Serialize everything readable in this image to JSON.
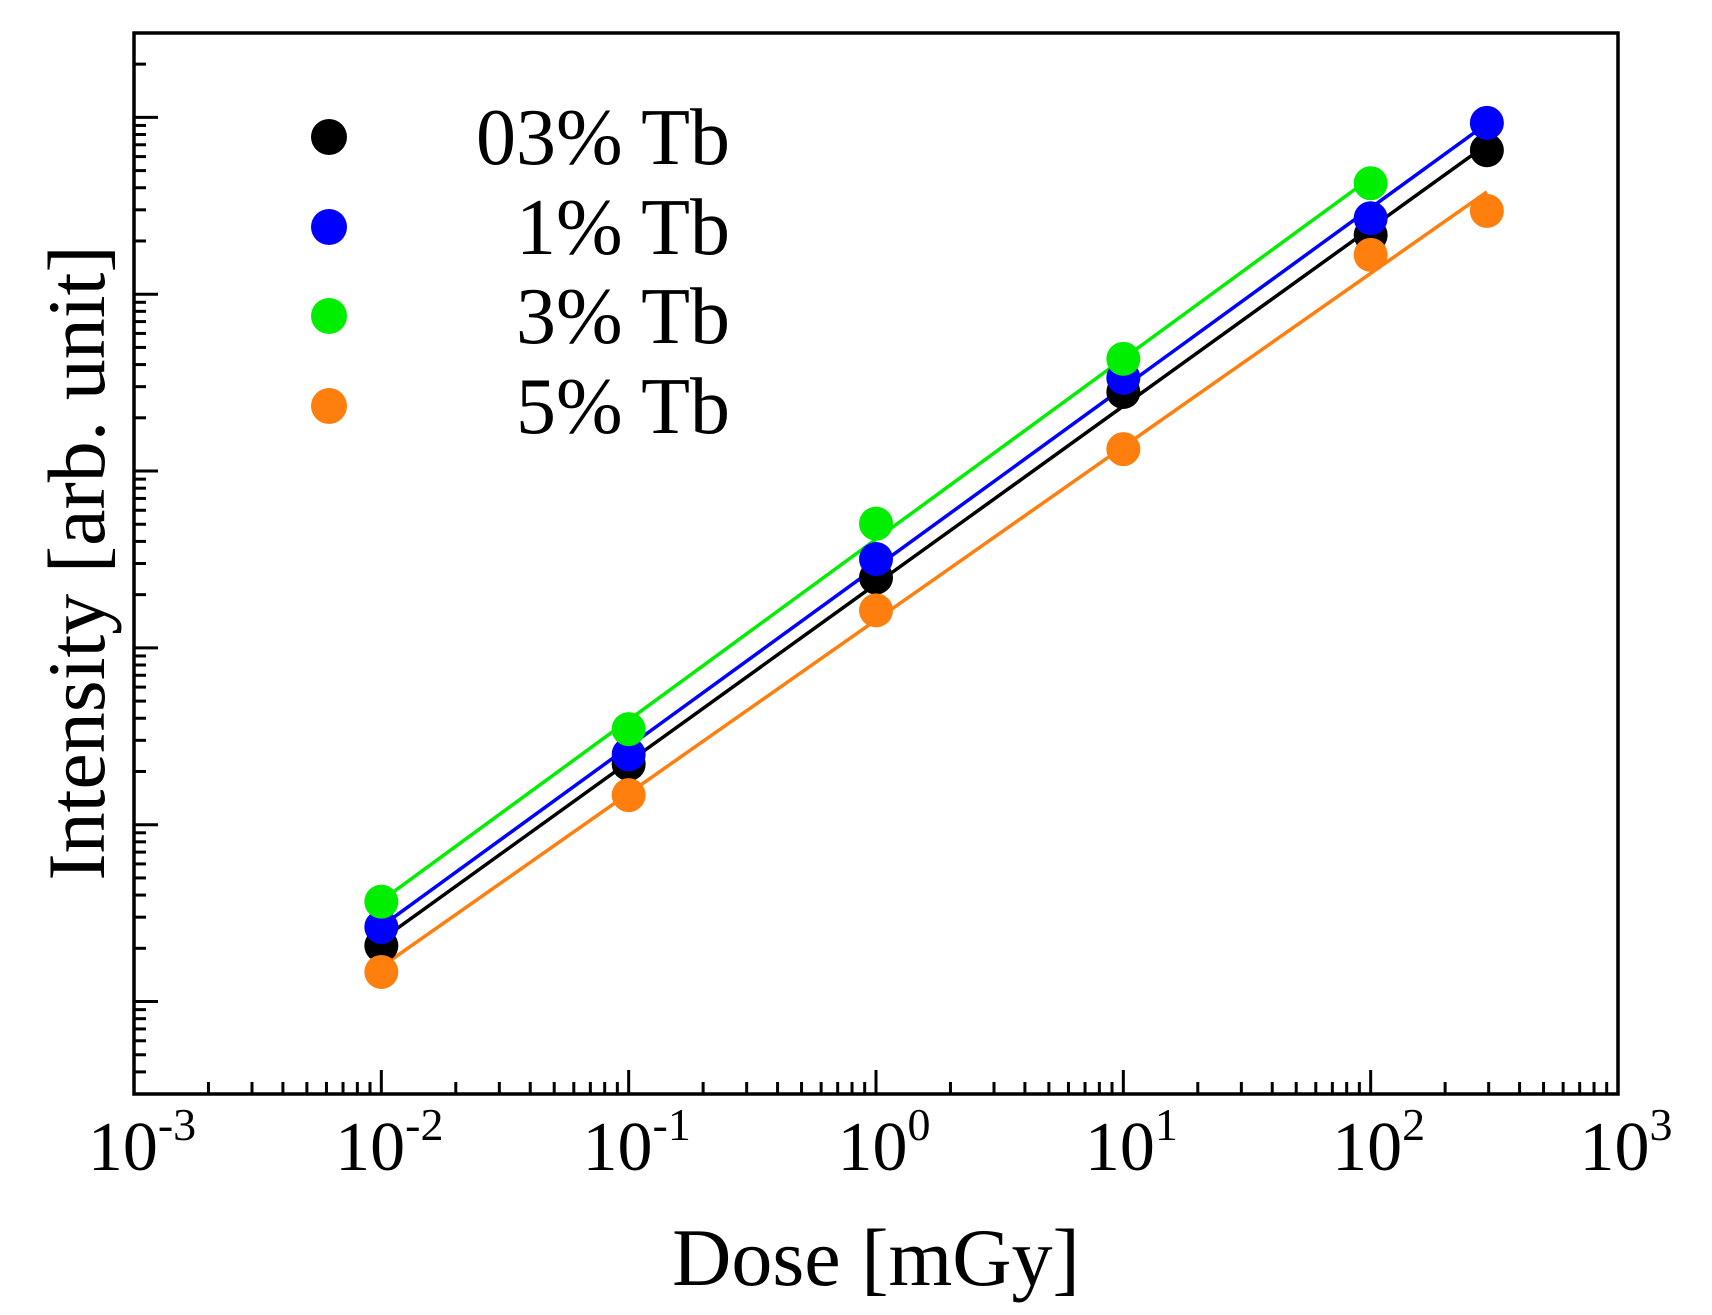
{
  "chart_data": {
    "type": "scatter",
    "title": "",
    "xlabel": "Dose [mGy]",
    "ylabel": "Intensity [arb. unit]",
    "xscale": "log",
    "yscale": "log",
    "xlim": [
      0.001,
      1000
    ],
    "ylim": [
      0.3,
      300000
    ],
    "x_tick_labels": [
      {
        "base": "10",
        "exp": "-3",
        "value": 0.001
      },
      {
        "base": "10",
        "exp": "-2",
        "value": 0.01
      },
      {
        "base": "10",
        "exp": "-1",
        "value": 0.1
      },
      {
        "base": "10",
        "exp": "0",
        "value": 1
      },
      {
        "base": "10",
        "exp": "1",
        "value": 10
      },
      {
        "base": "10",
        "exp": "2",
        "value": 100
      },
      {
        "base": "10",
        "exp": "3",
        "value": 1000
      }
    ],
    "y_major_ticks": [
      1,
      10,
      100,
      1000,
      10000,
      100000
    ],
    "legend_position": "top-left",
    "series": [
      {
        "name": "03% Tb",
        "color": "#000000",
        "x": [
          0.01,
          0.1,
          1,
          10,
          100,
          295
        ],
        "y": [
          2.07,
          22.0,
          250,
          2800,
          21600,
          65200
        ]
      },
      {
        "name": "1% Tb",
        "color": "#0000ff",
        "x": [
          0.01,
          0.1,
          1,
          10,
          100,
          295
        ],
        "y": [
          2.64,
          25.0,
          318,
          3370,
          26900,
          93100
        ]
      },
      {
        "name": "3% Tb",
        "color": "#00ee00",
        "x": [
          0.01,
          0.1,
          1,
          10,
          100
        ],
        "y": [
          3.67,
          34.7,
          504,
          4310,
          42400
        ]
      },
      {
        "name": "5% Tb",
        "color": "#ff7f0e",
        "x": [
          0.01,
          0.1,
          1,
          10,
          100,
          295
        ],
        "y": [
          1.47,
          14.7,
          163,
          1330,
          16700,
          29600
        ]
      }
    ]
  }
}
